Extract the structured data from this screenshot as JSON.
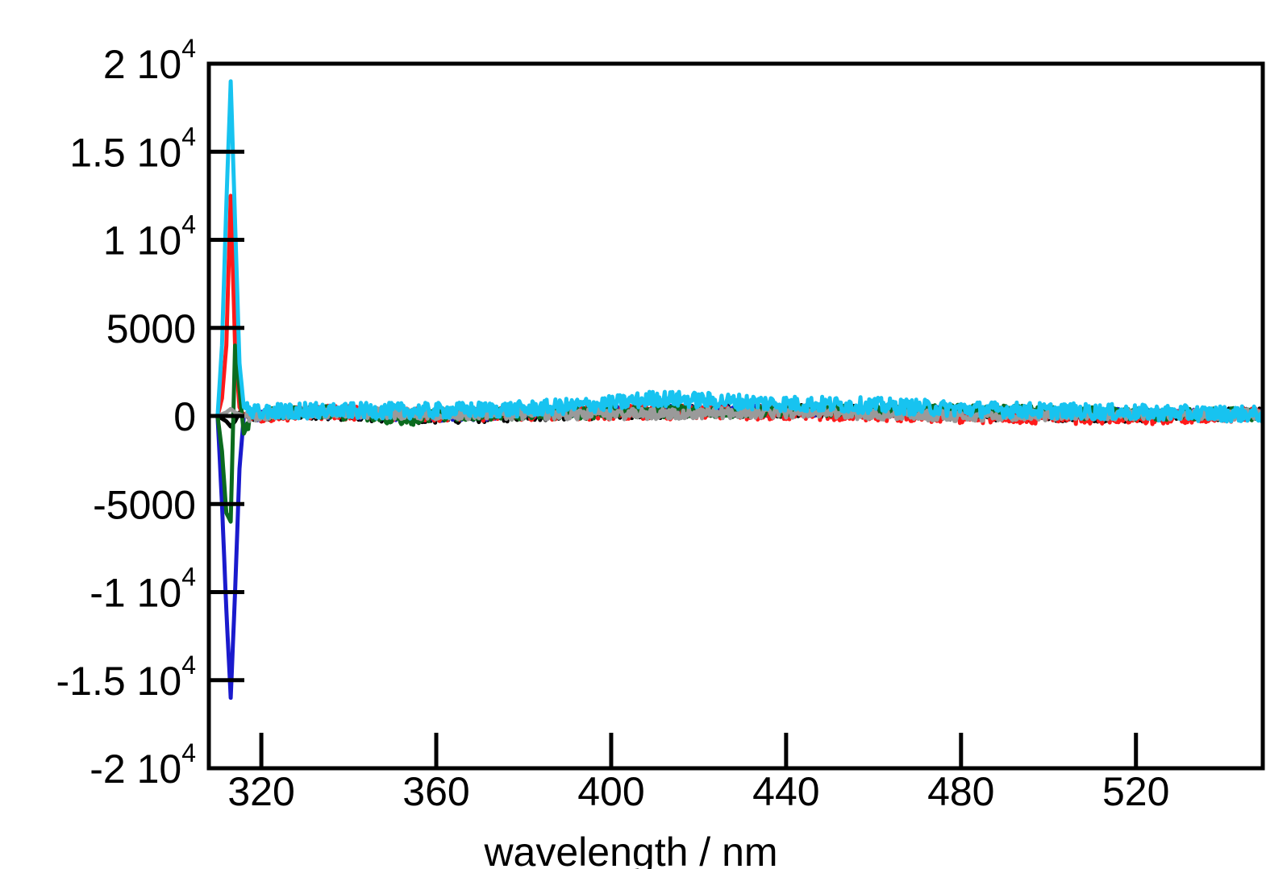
{
  "chart_data": {
    "type": "line",
    "title": "",
    "xlabel": "wavelength / nm",
    "ylabel": "",
    "xlim": [
      308,
      549
    ],
    "ylim": [
      -20000,
      20000
    ],
    "grid": false,
    "legend": "none",
    "x_ticks": [
      320,
      360,
      400,
      440,
      480,
      520
    ],
    "x_tick_labels": [
      "320",
      "360",
      "400",
      "440",
      "480",
      "520"
    ],
    "y_ticks": [
      {
        "value": 20000,
        "mantissa": "2 10",
        "exponent": "4"
      },
      {
        "value": 15000,
        "mantissa": "1.5 10",
        "exponent": "4"
      },
      {
        "value": 10000,
        "mantissa": "1 10",
        "exponent": "4"
      },
      {
        "value": 5000,
        "mantissa": "5000",
        "exponent": ""
      },
      {
        "value": 0,
        "mantissa": "0",
        "exponent": ""
      },
      {
        "value": -5000,
        "mantissa": "-5000",
        "exponent": ""
      },
      {
        "value": -10000,
        "mantissa": "-1 10",
        "exponent": "4"
      },
      {
        "value": -15000,
        "mantissa": "-1.5 10",
        "exponent": "4"
      },
      {
        "value": -20000,
        "mantissa": "-2 10",
        "exponent": "4"
      }
    ],
    "series": [
      {
        "color": "#000000",
        "x": [
          310,
          312,
          313,
          314,
          315,
          316,
          318,
          330,
          360,
          400,
          440,
          480,
          520,
          549
        ],
        "y": [
          0,
          -300,
          -600,
          -300,
          200,
          100,
          0,
          200,
          -100,
          200,
          300,
          100,
          0,
          100
        ],
        "noise": 350
      },
      {
        "color": "#1a1acd",
        "x": [
          310,
          311,
          312,
          313,
          314,
          315,
          316,
          318,
          330,
          360,
          400,
          440,
          480,
          520,
          549
        ],
        "y": [
          0,
          -5000,
          -11000,
          -16000,
          -10000,
          -3000,
          0,
          0,
          200,
          0,
          300,
          300,
          200,
          100,
          100
        ],
        "noise": 300
      },
      {
        "color": "#ff1a1a",
        "x": [
          310,
          311,
          312,
          313,
          314,
          315,
          316,
          318,
          330,
          360,
          400,
          440,
          480,
          520,
          549
        ],
        "y": [
          0,
          1000,
          4000,
          12500,
          4000,
          500,
          0,
          0,
          200,
          100,
          200,
          200,
          0,
          -100,
          100
        ],
        "noise": 400
      },
      {
        "color": "#0b6b1e",
        "x": [
          310,
          311,
          312,
          313,
          314,
          315,
          316,
          318,
          330,
          355,
          360,
          400,
          440,
          480,
          520,
          549
        ],
        "y": [
          0,
          -2000,
          -5500,
          -6000,
          4000,
          1500,
          -1000,
          0,
          300,
          -200,
          100,
          200,
          300,
          300,
          100,
          100
        ],
        "noise": 350
      },
      {
        "color": "#9a9a9a",
        "x": [
          310,
          312,
          313,
          314,
          316,
          318,
          330,
          360,
          400,
          440,
          480,
          520,
          549
        ],
        "y": [
          0,
          200,
          400,
          200,
          0,
          0,
          200,
          100,
          100,
          200,
          0,
          100,
          100
        ],
        "noise": 300
      },
      {
        "color": "#17c3f0",
        "x": [
          310,
          311,
          312,
          313,
          314,
          315,
          316,
          318,
          330,
          360,
          380,
          400,
          410,
          420,
          440,
          460,
          480,
          500,
          520,
          549
        ],
        "y": [
          0,
          4000,
          12000,
          19000,
          11000,
          3000,
          500,
          200,
          300,
          300,
          400,
          700,
          1000,
          900,
          700,
          600,
          400,
          300,
          200,
          100
        ],
        "noise": 450
      }
    ]
  }
}
